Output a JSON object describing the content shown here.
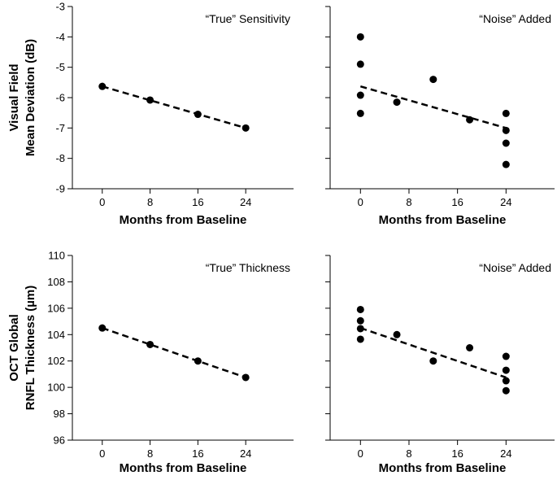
{
  "chart_data": [
    {
      "type": "scatter",
      "annotation": "“True” Sensitivity",
      "xlabel": "Months from Baseline",
      "ylabel_lines": [
        "Visual Field",
        "Mean Deviation (dB)"
      ],
      "xlim": [
        -5,
        32
      ],
      "xticks": [
        0,
        8,
        16,
        24
      ],
      "ylim": [
        -9,
        -3
      ],
      "yticks": [
        -9,
        -8,
        -7,
        -6,
        -5,
        -4,
        -3
      ],
      "points": [
        {
          "x": 0,
          "y": -5.63
        },
        {
          "x": 8,
          "y": -6.08
        },
        {
          "x": 16,
          "y": -6.55
        },
        {
          "x": 24,
          "y": -7.0
        }
      ],
      "trend": {
        "x0": 0,
        "y0": -5.63,
        "x1": 24,
        "y1": -7.0
      }
    },
    {
      "type": "scatter",
      "annotation": "“Noise” Added",
      "xlabel": "Months from Baseline",
      "ylabel_lines": [],
      "xlim": [
        -5,
        32
      ],
      "xticks": [
        0,
        8,
        16,
        24
      ],
      "ylim": [
        -9,
        -3
      ],
      "yticks": [
        -9,
        -8,
        -7,
        -6,
        -5,
        -4,
        -3
      ],
      "points": [
        {
          "x": 0,
          "y": -4.0
        },
        {
          "x": 0,
          "y": -4.9
        },
        {
          "x": 0,
          "y": -5.92
        },
        {
          "x": 0,
          "y": -6.52
        },
        {
          "x": 6,
          "y": -6.15
        },
        {
          "x": 12,
          "y": -5.4
        },
        {
          "x": 18,
          "y": -6.73
        },
        {
          "x": 24,
          "y": -6.52
        },
        {
          "x": 24,
          "y": -7.08
        },
        {
          "x": 24,
          "y": -7.5
        },
        {
          "x": 24,
          "y": -8.2
        }
      ],
      "trend": {
        "x0": 0,
        "y0": -5.63,
        "x1": 24,
        "y1": -7.0
      }
    },
    {
      "type": "scatter",
      "annotation": "“True” Thickness",
      "xlabel": "Months from Baseline",
      "ylabel_lines": [
        "OCT Global",
        "RNFL Thickness (µm)"
      ],
      "xlim": [
        -5,
        32
      ],
      "xticks": [
        0,
        8,
        16,
        24
      ],
      "ylim": [
        96,
        110
      ],
      "yticks": [
        96,
        98,
        100,
        102,
        104,
        106,
        108,
        110
      ],
      "points": [
        {
          "x": 0,
          "y": 104.5
        },
        {
          "x": 8,
          "y": 103.25
        },
        {
          "x": 16,
          "y": 102.0
        },
        {
          "x": 24,
          "y": 100.75
        }
      ],
      "trend": {
        "x0": 0,
        "y0": 104.5,
        "x1": 24,
        "y1": 100.75
      }
    },
    {
      "type": "scatter",
      "annotation": "“Noise” Added",
      "xlabel": "Months from Baseline",
      "ylabel_lines": [],
      "xlim": [
        -5,
        32
      ],
      "xticks": [
        0,
        8,
        16,
        24
      ],
      "ylim": [
        96,
        110
      ],
      "yticks": [
        96,
        98,
        100,
        102,
        104,
        106,
        108,
        110
      ],
      "points": [
        {
          "x": 0,
          "y": 105.9
        },
        {
          "x": 0,
          "y": 105.05
        },
        {
          "x": 0,
          "y": 104.45
        },
        {
          "x": 0,
          "y": 103.65
        },
        {
          "x": 6,
          "y": 104.0
        },
        {
          "x": 12,
          "y": 102.0
        },
        {
          "x": 18,
          "y": 103.0
        },
        {
          "x": 24,
          "y": 102.35
        },
        {
          "x": 24,
          "y": 101.3
        },
        {
          "x": 24,
          "y": 100.5
        },
        {
          "x": 24,
          "y": 99.75
        }
      ],
      "trend": {
        "x0": 0,
        "y0": 104.5,
        "x1": 24,
        "y1": 100.75
      }
    }
  ]
}
